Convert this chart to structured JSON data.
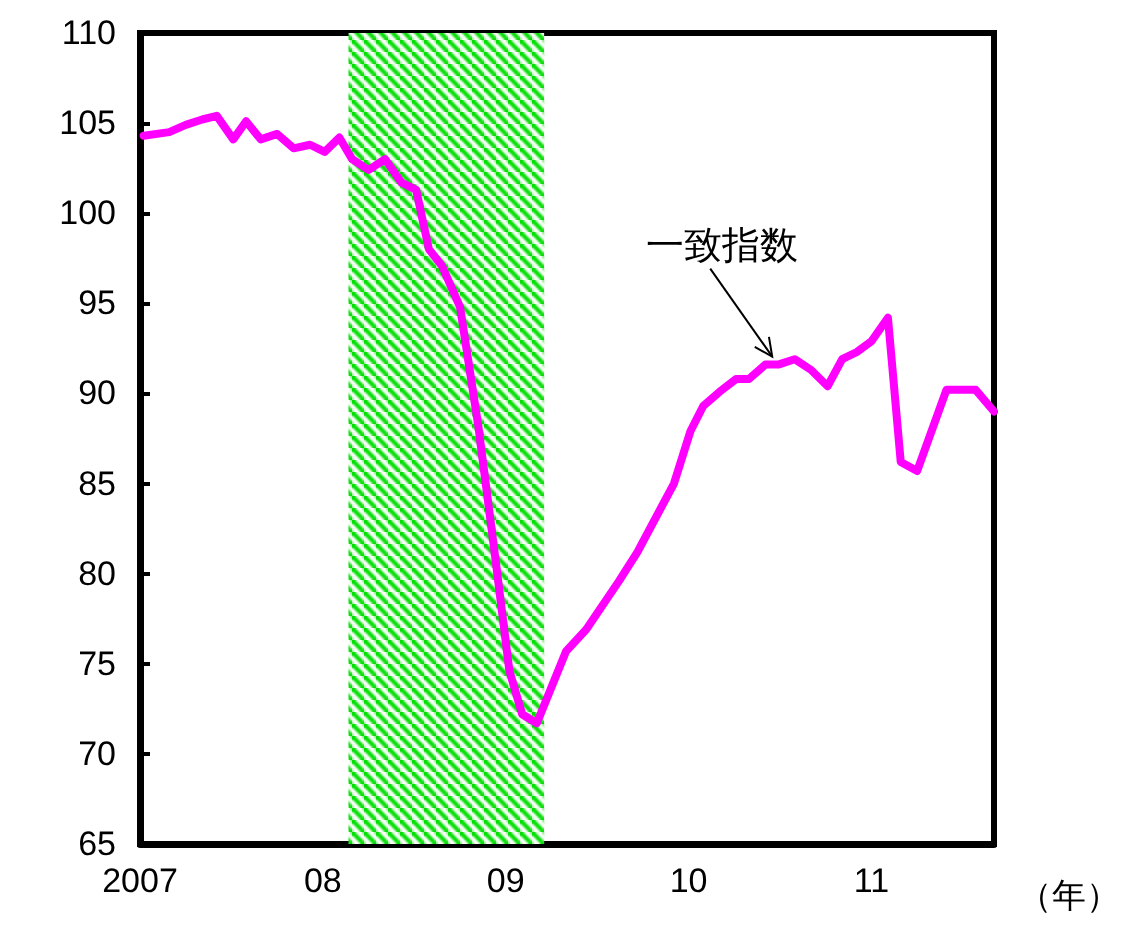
{
  "chart_data": {
    "type": "line",
    "xlabel": "（年）",
    "xlim": [
      2007,
      2011.67
    ],
    "xticks": [
      2007,
      {
        "value": 2008,
        "label": "08"
      },
      {
        "value": 2009,
        "label": "09"
      },
      {
        "value": 2010,
        "label": "10"
      },
      {
        "value": 2011,
        "label": "11"
      }
    ],
    "ylim": [
      65,
      110
    ],
    "yticks": [
      65,
      70,
      75,
      80,
      85,
      90,
      95,
      100,
      105,
      110
    ],
    "x": [
      2007.02,
      2007.16,
      2007.25,
      2007.34,
      2007.42,
      2007.51,
      2007.58,
      2007.66,
      2007.75,
      2007.84,
      2007.93,
      2008.01,
      2008.09,
      2008.16,
      2008.25,
      2008.34,
      2008.43,
      2008.51,
      2008.58,
      2008.65,
      2008.75,
      2008.85,
      2008.94,
      2009.02,
      2009.09,
      2009.17,
      2009.33,
      2009.44,
      2009.62,
      2009.72,
      2009.92,
      2010.01,
      2010.08,
      2010.17,
      2010.26,
      2010.33,
      2010.42,
      2010.49,
      2010.58,
      2010.67,
      2010.76,
      2010.84,
      2010.92,
      2011.0,
      2011.09,
      2011.16,
      2011.25,
      2011.41,
      2011.57,
      2011.67
    ],
    "series": [
      {
        "color": "#ff00ff",
        "values": [
          104.3,
          104.5,
          104.9,
          105.2,
          105.4,
          104.1,
          105.1,
          104.1,
          104.4,
          103.6,
          103.8,
          103.4,
          104.2,
          103.0,
          102.4,
          103.0,
          101.7,
          101.3,
          98.0,
          97.1,
          94.8,
          88.2,
          81.1,
          74.6,
          72.2,
          71.7,
          75.7,
          76.9,
          79.6,
          81.2,
          85.0,
          87.9,
          89.3,
          90.1,
          90.8,
          90.8,
          91.6,
          91.6,
          91.9,
          91.3,
          90.4,
          91.9,
          92.3,
          92.9,
          94.2,
          86.2,
          85.7,
          90.2,
          90.2,
          89.0
        ]
      }
    ],
    "bands": [
      {
        "axis": "x",
        "from": 2008.14,
        "to": 2009.21,
        "color": "#00dd00"
      }
    ],
    "annotations": [
      {
        "text": "一致指数",
        "x": 2010.49,
        "y": 91.6
      }
    ],
    "grid": false,
    "marker": "none",
    "line_style": "solid"
  }
}
